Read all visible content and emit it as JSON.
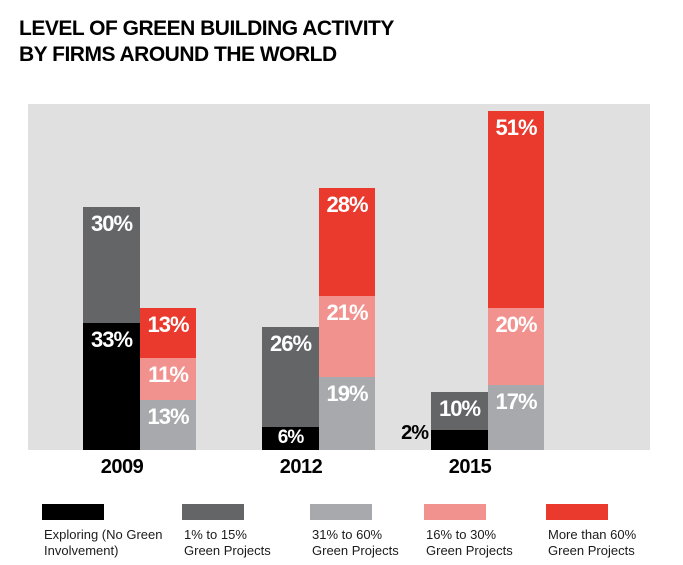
{
  "title": {
    "line1": "LEVEL OF GREEN BUILDING ACTIVITY",
    "line2": "BY FIRMS AROUND THE WORLD"
  },
  "chart_data": {
    "type": "bar",
    "stacked": true,
    "orientation": "vertical",
    "title": "LEVEL OF GREEN BUILDING ACTIVITY BY FIRMS AROUND THE WORLD",
    "categories": [
      "2009",
      "2012",
      "2015"
    ],
    "series": [
      {
        "name": "Exploring (No Green Involvement)",
        "color": "#000000",
        "stack": "left",
        "values": [
          33,
          6,
          2
        ]
      },
      {
        "name": "1% to 15% Green Projects",
        "color": "#646567",
        "stack": "left",
        "values": [
          30,
          26,
          10
        ]
      },
      {
        "name": "31% to 60% Green Projects",
        "color": "#A7A9AC",
        "stack": "right",
        "values": [
          13,
          19,
          17
        ]
      },
      {
        "name": "16% to 30% Green Projects",
        "color": "#F2928E",
        "stack": "right",
        "values": [
          11,
          21,
          20
        ]
      },
      {
        "name": "More than 60% Green Projects",
        "color": "#E93A2D",
        "stack": "right",
        "values": [
          13,
          28,
          51
        ]
      }
    ],
    "value_suffix": "%",
    "data_label_color": "#FFFFFF",
    "plot_background": "#E0E0E0",
    "grid": false,
    "ylim": [
      0,
      90
    ],
    "legend_position": "bottom",
    "notes": "2% segment label for Exploring in 2015 is drawn outside (left of) its bar"
  },
  "legend": {
    "items": [
      {
        "label": "Exploring (No Green\nInvolvement)",
        "color": "#000000"
      },
      {
        "label": "1% to 15%\nGreen Projects",
        "color": "#646567"
      },
      {
        "label": "31% to 60%\nGreen Projects",
        "color": "#A7A9AC"
      },
      {
        "label": "16% to 30%\nGreen Projects",
        "color": "#F2928E"
      },
      {
        "label": "More than 60%\nGreen Projects",
        "color": "#E93A2D"
      }
    ]
  }
}
